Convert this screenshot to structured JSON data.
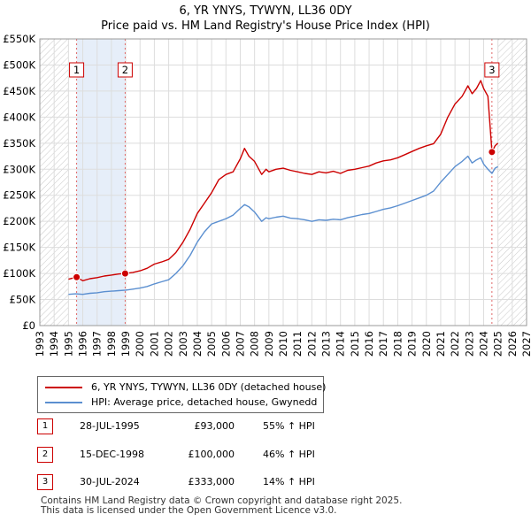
{
  "chart_data": {
    "type": "line",
    "title": "6, YR YNYS, TYWYN, LL36 0DY",
    "subtitle": "Price paid vs. HM Land Registry's House Price Index (HPI)",
    "xlabel": "",
    "ylabel": "",
    "xlim": [
      1993,
      2027
    ],
    "ylim": [
      0,
      550000
    ],
    "x_ticks": [
      1993,
      1994,
      1995,
      1996,
      1997,
      1998,
      1999,
      2000,
      2001,
      2002,
      2003,
      2004,
      2005,
      2006,
      2007,
      2008,
      2009,
      2010,
      2011,
      2012,
      2013,
      2014,
      2015,
      2016,
      2017,
      2018,
      2019,
      2020,
      2021,
      2022,
      2023,
      2024,
      2025,
      2026,
      2027
    ],
    "y_ticks": [
      {
        "value": 0,
        "label": "£0"
      },
      {
        "value": 50000,
        "label": "£50K"
      },
      {
        "value": 100000,
        "label": "£100K"
      },
      {
        "value": 150000,
        "label": "£150K"
      },
      {
        "value": 200000,
        "label": "£200K"
      },
      {
        "value": 250000,
        "label": "£250K"
      },
      {
        "value": 300000,
        "label": "£300K"
      },
      {
        "value": 350000,
        "label": "£350K"
      },
      {
        "value": 400000,
        "label": "£400K"
      },
      {
        "value": 450000,
        "label": "£450K"
      },
      {
        "value": 500000,
        "label": "£500K"
      },
      {
        "value": 550000,
        "label": "£550K"
      }
    ],
    "grid": true,
    "shaded_ranges": [
      {
        "from": 1993,
        "to": 1995.0,
        "style": "hatched"
      },
      {
        "from": 1995.57,
        "to": 1998.96,
        "style": "light-blue"
      },
      {
        "from": 2025.0,
        "to": 2027,
        "style": "hatched"
      }
    ],
    "series": [
      {
        "name": "6, YR YNYS, TYWYN, LL36 0DY (detached house)",
        "color": "#cc0000",
        "x": [
          1995.0,
          1995.57,
          1996.0,
          1996.5,
          1997.0,
          1997.5,
          1998.0,
          1998.5,
          1998.96,
          1999.5,
          2000.0,
          2000.5,
          2001.0,
          2001.5,
          2002.0,
          2002.5,
          2003.0,
          2003.5,
          2004.0,
          2004.5,
          2005.0,
          2005.5,
          2006.0,
          2006.5,
          2007.0,
          2007.3,
          2007.6,
          2008.0,
          2008.5,
          2008.8,
          2009.0,
          2009.5,
          2010.0,
          2010.5,
          2011.0,
          2011.5,
          2012.0,
          2012.5,
          2013.0,
          2013.5,
          2014.0,
          2014.5,
          2015.0,
          2015.5,
          2016.0,
          2016.5,
          2017.0,
          2017.5,
          2018.0,
          2018.5,
          2019.0,
          2019.5,
          2020.0,
          2020.5,
          2021.0,
          2021.5,
          2022.0,
          2022.5,
          2022.9,
          2023.2,
          2023.5,
          2023.8,
          2024.0,
          2024.3,
          2024.58,
          2024.8,
          2025.0
        ],
        "values": [
          89000,
          93000,
          86000,
          90000,
          92000,
          95000,
          97000,
          99000,
          100000,
          102000,
          105000,
          110000,
          118000,
          122000,
          127000,
          140000,
          160000,
          185000,
          215000,
          235000,
          255000,
          280000,
          290000,
          295000,
          320000,
          340000,
          325000,
          315000,
          290000,
          300000,
          295000,
          300000,
          302000,
          298000,
          295000,
          292000,
          290000,
          295000,
          293000,
          296000,
          292000,
          298000,
          300000,
          303000,
          306000,
          312000,
          316000,
          318000,
          322000,
          328000,
          334000,
          340000,
          345000,
          349000,
          367000,
          400000,
          425000,
          440000,
          460000,
          445000,
          455000,
          470000,
          455000,
          440000,
          333000,
          345000,
          350000
        ]
      },
      {
        "name": "HPI: Average price, detached house, Gwynedd",
        "color": "#5b8fd0",
        "x": [
          1995.0,
          1995.5,
          1996.0,
          1996.5,
          1997.0,
          1997.5,
          1998.0,
          1998.5,
          1999.0,
          1999.5,
          2000.0,
          2000.5,
          2001.0,
          2001.5,
          2002.0,
          2002.5,
          2003.0,
          2003.5,
          2004.0,
          2004.5,
          2005.0,
          2005.5,
          2006.0,
          2006.5,
          2007.0,
          2007.3,
          2007.6,
          2008.0,
          2008.5,
          2008.8,
          2009.0,
          2009.5,
          2010.0,
          2010.5,
          2011.0,
          2011.5,
          2012.0,
          2012.5,
          2013.0,
          2013.5,
          2014.0,
          2014.5,
          2015.0,
          2015.5,
          2016.0,
          2016.5,
          2017.0,
          2017.5,
          2018.0,
          2018.5,
          2019.0,
          2019.5,
          2020.0,
          2020.5,
          2021.0,
          2021.5,
          2022.0,
          2022.5,
          2022.9,
          2023.2,
          2023.5,
          2023.8,
          2024.0,
          2024.3,
          2024.58,
          2024.8,
          2025.0
        ],
        "values": [
          60000,
          61000,
          60000,
          62000,
          63000,
          65000,
          66000,
          67000,
          68000,
          70000,
          72000,
          75000,
          80000,
          84000,
          88000,
          100000,
          115000,
          135000,
          160000,
          180000,
          195000,
          200000,
          205000,
          212000,
          225000,
          232000,
          228000,
          218000,
          200000,
          207000,
          205000,
          208000,
          210000,
          206000,
          205000,
          203000,
          200000,
          203000,
          202000,
          204000,
          203000,
          207000,
          210000,
          213000,
          215000,
          219000,
          223000,
          226000,
          230000,
          235000,
          240000,
          245000,
          250000,
          258000,
          275000,
          290000,
          305000,
          315000,
          325000,
          312000,
          318000,
          322000,
          310000,
          300000,
          292000,
          302000,
          305000
        ]
      }
    ],
    "sales": [
      {
        "id": "1",
        "date": "28-JUL-1995",
        "price": "£93,000",
        "hpi": "55% ↑ HPI",
        "x": 1995.57,
        "value": 93000
      },
      {
        "id": "2",
        "date": "15-DEC-1998",
        "price": "£100,000",
        "hpi": "46% ↑ HPI",
        "x": 1998.96,
        "value": 100000
      },
      {
        "id": "3",
        "date": "30-JUL-2024",
        "price": "£333,000",
        "hpi": "14% ↑ HPI",
        "x": 2024.58,
        "value": 333000
      }
    ],
    "legend_position": "below"
  },
  "footer": {
    "line1": "Contains HM Land Registry data © Crown copyright and database right 2025.",
    "line2": "This data is licensed under the Open Government Licence v3.0."
  }
}
